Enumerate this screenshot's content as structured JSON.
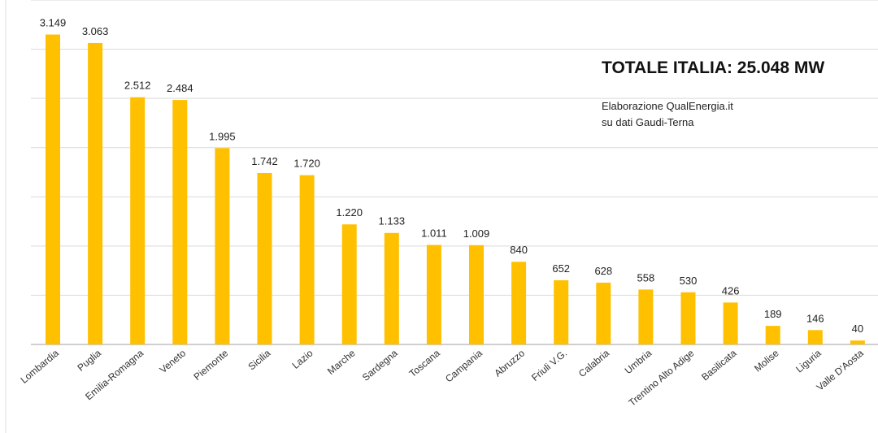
{
  "annotation": {
    "total": "TOTALE ITALIA:  25.048 MW",
    "source_line1": "Elaborazione QualEnergia.it",
    "source_line2": "su dati Gaudi-Terna"
  },
  "chart_data": {
    "type": "bar",
    "categories": [
      "Lombardia",
      "Puglia",
      "Emilia-Romagna",
      "Veneto",
      "Piemonte",
      "Sicilia",
      "Lazio",
      "Marche",
      "Sardegna",
      "Toscana",
      "Campania",
      "Abruzzo",
      "Friuli V.G.",
      "Calabria",
      "Umbria",
      "Trentino Alto Adige",
      "Basilicata",
      "Molise",
      "Liguria",
      "Valle D'Aosta"
    ],
    "values": [
      3149,
      3063,
      2512,
      2484,
      1995,
      1742,
      1720,
      1220,
      1133,
      1011,
      1009,
      840,
      652,
      628,
      558,
      530,
      426,
      189,
      146,
      40
    ],
    "value_labels": [
      "3.149",
      "3.063",
      "2.512",
      "2.484",
      "1.995",
      "1.742",
      "1.720",
      "1.220",
      "1.133",
      "1.011",
      "1.009",
      "840",
      "652",
      "628",
      "558",
      "530",
      "426",
      "189",
      "146",
      "40"
    ],
    "ylim": [
      0,
      3500
    ],
    "grid": true,
    "bar_color": "#FFC000",
    "grid_color": "#d9d9d9",
    "axis_color": "#bfbfbf"
  }
}
